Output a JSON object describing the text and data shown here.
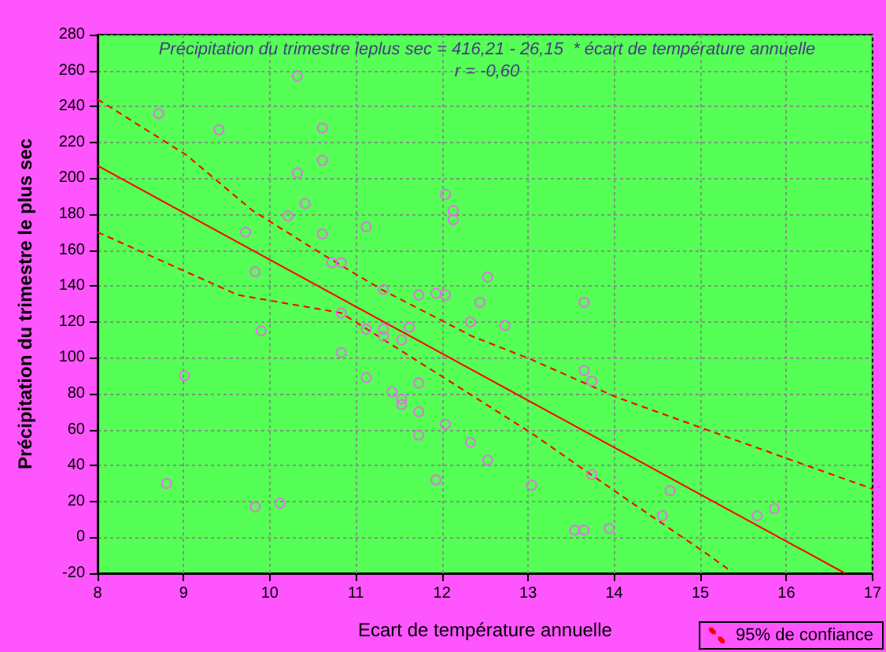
{
  "chart_data": {
    "type": "scatter",
    "xlabel": "Ecart de température annuelle",
    "ylabel": "Précipitation du trimestre le plus sec",
    "annotations": [
      "Précipitation du trimestre leplus sec = 416,21 - 26,15  * écart de température annuelle",
      "r = -0,60"
    ],
    "xlim": [
      8,
      17
    ],
    "xticks": [
      8,
      9,
      10,
      11,
      12,
      13,
      14,
      15,
      16,
      17
    ],
    "ylim": [
      -20,
      280
    ],
    "yticks": [
      -20,
      0,
      20,
      40,
      60,
      80,
      100,
      120,
      140,
      160,
      180,
      200,
      220,
      240,
      260,
      280
    ],
    "grid": true,
    "legend": "bottom right",
    "series": [
      {
        "color": "#ff55ff",
        "marker": "circle",
        "x": [
          8.71,
          9.41,
          10.32,
          10.61,
          10.61,
          10.32,
          10.41,
          10.21,
          9.72,
          10.61,
          11.12,
          10.72,
          10.83,
          9.83,
          12.04,
          12.13,
          12.13,
          11.32,
          11.73,
          11.93,
          12.04,
          12.44,
          12.53,
          13.65,
          10.83,
          12.33,
          9.9,
          11.12,
          11.32,
          11.32,
          11.62,
          11.53,
          10.83,
          9.01,
          11.12,
          11.42,
          11.53,
          11.53,
          11.73,
          11.73,
          12.04,
          11.73,
          12.33,
          12.53,
          11.93,
          8.8,
          9.83,
          10.12,
          12.73,
          13.65,
          13.74,
          13.04,
          13.74,
          13.54,
          13.65,
          13.94,
          14.56,
          14.65,
          15.66,
          15.86
        ],
        "values": [
          236,
          227,
          257,
          228,
          210,
          203,
          186,
          179,
          170,
          169,
          173,
          153,
          153,
          148,
          191,
          182,
          177,
          138,
          135,
          136,
          135,
          131,
          145,
          131,
          125,
          120,
          115,
          116,
          116,
          112,
          117,
          110,
          103,
          90,
          89,
          81,
          77,
          74,
          86,
          70,
          63,
          57,
          53,
          43,
          32,
          30,
          17,
          19,
          118,
          93,
          87,
          29,
          35,
          4,
          4,
          5,
          12,
          26,
          12,
          16
        ]
      },
      {
        "type": "line",
        "color": "#ff0000",
        "line_style": "solid",
        "marker": "none",
        "x": [
          8,
          16.68
        ],
        "values": [
          207,
          -20
        ]
      },
      {
        "type": "line",
        "name": "95% de confiance",
        "color": "#ff0000",
        "line_style": "dashed",
        "marker": "none",
        "x": [
          8,
          9.03,
          9.8,
          10.6,
          11.3,
          12.35,
          13.04,
          14.03,
          15.07,
          16.06,
          17
        ],
        "values": [
          244,
          213,
          182,
          158,
          138,
          112,
          99,
          78,
          60,
          43,
          27
        ]
      },
      {
        "type": "line",
        "color": "#ff0000",
        "line_style": "dashed",
        "marker": "none",
        "x": [
          8,
          9.63,
          10.83,
          12.35,
          13.04,
          14.03,
          15.07,
          15.36
        ],
        "values": [
          170,
          135,
          125,
          79,
          58,
          25,
          -9,
          -19
        ]
      }
    ]
  }
}
